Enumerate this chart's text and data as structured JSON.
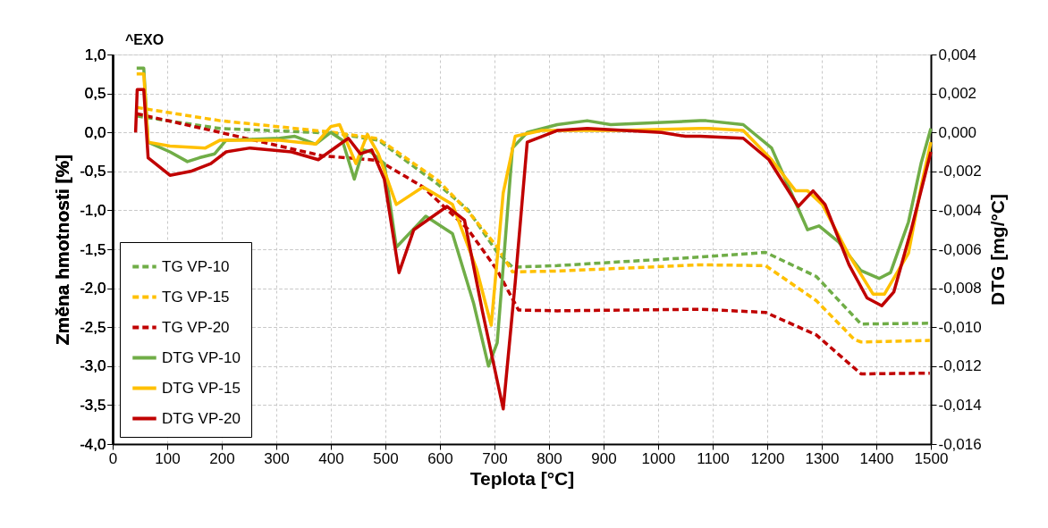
{
  "chart_data": {
    "type": "line",
    "xlabel": "Teplota [°C]",
    "ylabel": "Změna hmotnosti [%]",
    "y2label": "DTG [mg/°C]",
    "annotations": [
      "^EXO"
    ],
    "xlim": [
      0,
      1500
    ],
    "xticks": [
      0,
      100,
      200,
      300,
      400,
      500,
      600,
      700,
      800,
      900,
      1000,
      1100,
      1200,
      1300,
      1400,
      1500
    ],
    "ylim": [
      -4.0,
      1.0
    ],
    "yticks": [
      {
        "value": 1.0,
        "label": "1,0"
      },
      {
        "value": 0.5,
        "label": "0,5"
      },
      {
        "value": 0.0,
        "label": "0,0"
      },
      {
        "value": -0.5,
        "label": "-0,5"
      },
      {
        "value": -1.0,
        "label": "-1,0"
      },
      {
        "value": -1.5,
        "label": "-1,5"
      },
      {
        "value": -2.0,
        "label": "-2,0"
      },
      {
        "value": -2.5,
        "label": "-2,5"
      },
      {
        "value": -3.0,
        "label": "-3,0"
      },
      {
        "value": -3.5,
        "label": "-3,5"
      },
      {
        "value": -4.0,
        "label": "-4,0"
      }
    ],
    "y2lim": [
      -0.016,
      0.004
    ],
    "y2ticks": [
      {
        "value": 0.004,
        "label": "0,004"
      },
      {
        "value": 0.002,
        "label": "0,002"
      },
      {
        "value": 0.0,
        "label": "0,000"
      },
      {
        "value": -0.002,
        "label": "-0,002"
      },
      {
        "value": -0.004,
        "label": "-0,004"
      },
      {
        "value": -0.006,
        "label": "-0,006"
      },
      {
        "value": -0.008,
        "label": "-0,008"
      },
      {
        "value": -0.01,
        "label": "-0,010"
      },
      {
        "value": -0.012,
        "label": "-0,012"
      },
      {
        "value": -0.014,
        "label": "-0,014"
      },
      {
        "value": -0.016,
        "label": "-0,016"
      }
    ],
    "grid": true,
    "legend": "bottom left",
    "series": [
      {
        "name": "TG VP-10",
        "line_style": "dashed",
        "color": "#70ad47",
        "x": [
          44,
          197,
          405,
          487,
          597,
          651,
          705,
          733,
          815,
          1077,
          1197,
          1290,
          1372,
          1498
        ],
        "values": [
          0.21,
          0.05,
          -0.01,
          -0.1,
          -0.67,
          -0.99,
          -1.54,
          -1.73,
          -1.71,
          -1.6,
          -1.54,
          -1.85,
          -2.46,
          -2.45
        ]
      },
      {
        "name": "TG VP-15",
        "line_style": "dashed",
        "color": "#ffc000",
        "x": [
          44,
          197,
          405,
          487,
          597,
          651,
          705,
          733,
          815,
          1077,
          1197,
          1290,
          1360,
          1372,
          1498
        ],
        "values": [
          0.32,
          0.15,
          0.0,
          -0.08,
          -0.62,
          -1.01,
          -1.47,
          -1.79,
          -1.78,
          -1.7,
          -1.71,
          -2.16,
          -2.66,
          -2.69,
          -2.67
        ]
      },
      {
        "name": "TG VP-20",
        "line_style": "dashed",
        "color": "#c00000",
        "x": [
          44,
          197,
          384,
          487,
          569,
          651,
          705,
          744,
          815,
          1077,
          1197,
          1290,
          1372,
          1498
        ],
        "values": [
          0.24,
          0.0,
          -0.3,
          -0.36,
          -0.7,
          -1.24,
          -1.77,
          -2.28,
          -2.29,
          -2.27,
          -2.31,
          -2.6,
          -3.1,
          -3.09
        ]
      },
      {
        "name": "DTG VP-10",
        "axis": "y2",
        "line_style": "solid",
        "color": "#70ad47",
        "x": [
          44,
          57,
          65,
          105,
          137,
          159,
          187,
          208,
          306,
          334,
          372,
          400,
          421,
          443,
          459,
          473,
          498,
          520,
          574,
          623,
          662,
          689,
          705,
          733,
          760,
          815,
          870,
          913,
          1077,
          1088,
          1156,
          1208,
          1252,
          1274,
          1295,
          1330,
          1372,
          1405,
          1426,
          1459,
          1482,
          1500
        ],
        "values": [
          0.0033,
          0.0033,
          -0.0005,
          -0.001,
          -0.0015,
          -0.0013,
          -0.0011,
          -0.0004,
          -0.0003,
          -0.0002,
          -0.0006,
          0.0,
          -0.0004,
          -0.0024,
          -0.0009,
          -0.001,
          -0.0016,
          -0.0059,
          -0.0043,
          -0.0052,
          -0.0088,
          -0.012,
          -0.0108,
          -0.0008,
          0.0,
          0.0004,
          0.0006,
          0.0004,
          0.0006,
          0.0006,
          0.0004,
          -0.0008,
          -0.0036,
          -0.005,
          -0.0048,
          -0.0056,
          -0.0071,
          -0.0075,
          -0.0072,
          -0.0046,
          -0.0016,
          0.0002
        ]
      },
      {
        "name": "DTG VP-15",
        "axis": "y2",
        "line_style": "solid",
        "color": "#ffc000",
        "x": [
          44,
          57,
          65,
          105,
          170,
          197,
          306,
          372,
          400,
          416,
          446,
          467,
          487,
          520,
          569,
          623,
          667,
          694,
          716,
          738,
          787,
          924,
          1077,
          1093,
          1156,
          1208,
          1252,
          1274,
          1301,
          1350,
          1394,
          1415,
          1459,
          1482,
          1500
        ],
        "values": [
          0.003,
          0.003,
          -0.0005,
          -0.0007,
          -0.0008,
          -0.0004,
          -0.0004,
          -0.0006,
          0.0003,
          0.0004,
          -0.0016,
          -0.0001,
          -0.0011,
          -0.0037,
          -0.0028,
          -0.0037,
          -0.007,
          -0.0099,
          -0.0031,
          -0.0002,
          0.0001,
          0.0001,
          0.0002,
          0.0002,
          0.0001,
          -0.0014,
          -0.003,
          -0.003,
          -0.0037,
          -0.0063,
          -0.0083,
          -0.0083,
          -0.0062,
          -0.0028,
          -0.0005
        ]
      },
      {
        "name": "DTG VP-20",
        "axis": "y2",
        "line_style": "solid",
        "color": "#c00000",
        "x": [
          42,
          45,
          57,
          65,
          105,
          143,
          180,
          208,
          252,
          328,
          377,
          432,
          454,
          475,
          498,
          525,
          552,
          613,
          645,
          678,
          716,
          738,
          760,
          815,
          870,
          1006,
          1050,
          1077,
          1156,
          1203,
          1257,
          1284,
          1306,
          1350,
          1383,
          1410,
          1432,
          1464,
          1500
        ],
        "values": [
          0.0,
          0.0022,
          0.0022,
          -0.0013,
          -0.0022,
          -0.002,
          -0.0016,
          -0.001,
          -0.0008,
          -0.001,
          -0.0014,
          -0.0003,
          -0.0011,
          -0.0009,
          -0.0024,
          -0.0072,
          -0.005,
          -0.0038,
          -0.0045,
          -0.0092,
          -0.0142,
          -0.0077,
          -0.0005,
          0.0001,
          0.0002,
          0.0,
          -0.0002,
          -0.0002,
          -0.0003,
          -0.0014,
          -0.0038,
          -0.003,
          -0.0037,
          -0.0068,
          -0.0085,
          -0.0089,
          -0.0082,
          -0.005,
          -0.001
        ]
      }
    ]
  }
}
